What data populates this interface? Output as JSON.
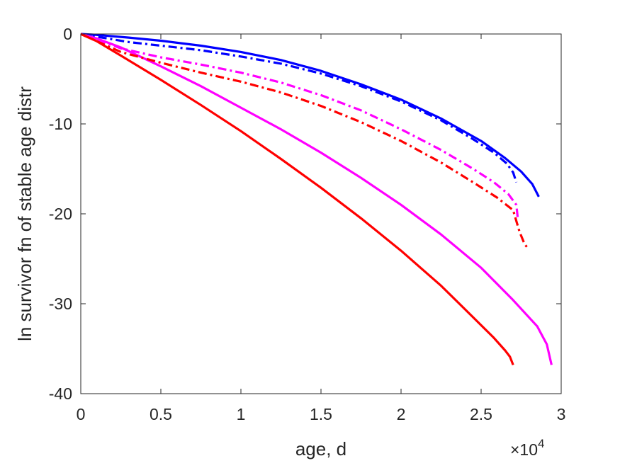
{
  "chart_data": {
    "type": "line",
    "title": "",
    "xlabel": "age, d",
    "ylabel": "ln survivor fn of stable age distr",
    "x_exponent_label": {
      "base": "×10",
      "power": "4"
    },
    "xlim": [
      0,
      30000
    ],
    "ylim": [
      -40,
      0
    ],
    "x_ticks": [
      {
        "value": 0,
        "label": "0"
      },
      {
        "value": 5000,
        "label": "0.5"
      },
      {
        "value": 10000,
        "label": "1"
      },
      {
        "value": 15000,
        "label": "1.5"
      },
      {
        "value": 20000,
        "label": "2"
      },
      {
        "value": 25000,
        "label": "2.5"
      },
      {
        "value": 30000,
        "label": "3"
      }
    ],
    "y_ticks": [
      {
        "value": 0,
        "label": "0"
      },
      {
        "value": -10,
        "label": "-10"
      },
      {
        "value": -20,
        "label": "-20"
      },
      {
        "value": -30,
        "label": "-30"
      },
      {
        "value": -40,
        "label": "-40"
      }
    ],
    "grid": false,
    "legend": "none",
    "series": [
      {
        "color": "#0000ff",
        "style": "solid",
        "points": [
          [
            0,
            0
          ],
          [
            1000,
            -0.1
          ],
          [
            3000,
            -0.4
          ],
          [
            5000,
            -0.75
          ],
          [
            7500,
            -1.3
          ],
          [
            10000,
            -2.0
          ],
          [
            12500,
            -2.9
          ],
          [
            15000,
            -4.1
          ],
          [
            17500,
            -5.6
          ],
          [
            20000,
            -7.3
          ],
          [
            22500,
            -9.4
          ],
          [
            25000,
            -11.9
          ],
          [
            26500,
            -13.8
          ],
          [
            27500,
            -15.3
          ],
          [
            28200,
            -16.7
          ],
          [
            28600,
            -18.1
          ]
        ]
      },
      {
        "color": "#0000ff",
        "style": "dashdot",
        "points": [
          [
            0,
            0
          ],
          [
            1000,
            -0.3
          ],
          [
            3000,
            -0.9
          ],
          [
            5000,
            -1.3
          ],
          [
            7500,
            -1.8
          ],
          [
            10000,
            -2.5
          ],
          [
            12500,
            -3.3
          ],
          [
            15000,
            -4.4
          ],
          [
            17500,
            -5.8
          ],
          [
            20000,
            -7.5
          ],
          [
            22500,
            -9.6
          ],
          [
            24500,
            -11.7
          ],
          [
            25800,
            -13.2
          ],
          [
            26600,
            -14.4
          ],
          [
            27000,
            -15.4
          ],
          [
            27200,
            -16.5
          ]
        ]
      },
      {
        "color": "#ff00ff",
        "style": "solid",
        "points": [
          [
            0,
            0
          ],
          [
            1000,
            -0.5
          ],
          [
            2500,
            -1.5
          ],
          [
            5000,
            -3.6
          ],
          [
            7500,
            -5.8
          ],
          [
            10000,
            -8.2
          ],
          [
            12500,
            -10.6
          ],
          [
            15000,
            -13.2
          ],
          [
            17500,
            -16.0
          ],
          [
            20000,
            -19.0
          ],
          [
            22500,
            -22.3
          ],
          [
            25000,
            -26.0
          ],
          [
            27000,
            -29.6
          ],
          [
            28500,
            -32.5
          ],
          [
            29100,
            -34.5
          ],
          [
            29400,
            -36.8
          ]
        ]
      },
      {
        "color": "#ff00ff",
        "style": "dashdot",
        "points": [
          [
            0,
            0
          ],
          [
            1000,
            -0.6
          ],
          [
            2500,
            -1.6
          ],
          [
            5000,
            -2.6
          ],
          [
            7500,
            -3.4
          ],
          [
            10000,
            -4.3
          ],
          [
            12500,
            -5.4
          ],
          [
            15000,
            -6.8
          ],
          [
            17500,
            -8.5
          ],
          [
            20000,
            -10.6
          ],
          [
            22500,
            -12.9
          ],
          [
            24500,
            -15.0
          ],
          [
            25800,
            -16.5
          ],
          [
            26700,
            -17.8
          ],
          [
            27200,
            -19.0
          ],
          [
            27300,
            -20.7
          ]
        ]
      },
      {
        "color": "#ff0000",
        "style": "solid",
        "points": [
          [
            0,
            0
          ],
          [
            1000,
            -0.8
          ],
          [
            2500,
            -2.4
          ],
          [
            5000,
            -5.1
          ],
          [
            7500,
            -7.9
          ],
          [
            10000,
            -10.8
          ],
          [
            12500,
            -13.9
          ],
          [
            15000,
            -17.1
          ],
          [
            17500,
            -20.5
          ],
          [
            20000,
            -24.1
          ],
          [
            22500,
            -28.0
          ],
          [
            24500,
            -31.5
          ],
          [
            25800,
            -33.8
          ],
          [
            26500,
            -35.2
          ],
          [
            26800,
            -35.9
          ],
          [
            27000,
            -36.8
          ]
        ]
      },
      {
        "color": "#ff0000",
        "style": "dashdot",
        "points": [
          [
            0,
            0
          ],
          [
            1000,
            -0.8
          ],
          [
            2500,
            -2.0
          ],
          [
            5000,
            -3.2
          ],
          [
            7500,
            -4.3
          ],
          [
            10000,
            -5.3
          ],
          [
            12500,
            -6.5
          ],
          [
            15000,
            -8.0
          ],
          [
            17500,
            -9.8
          ],
          [
            20000,
            -11.9
          ],
          [
            22500,
            -14.3
          ],
          [
            24500,
            -16.5
          ],
          [
            26000,
            -18.2
          ],
          [
            27000,
            -19.6
          ],
          [
            27400,
            -22.0
          ],
          [
            27700,
            -23.3
          ],
          [
            27900,
            -23.8
          ]
        ]
      }
    ]
  }
}
